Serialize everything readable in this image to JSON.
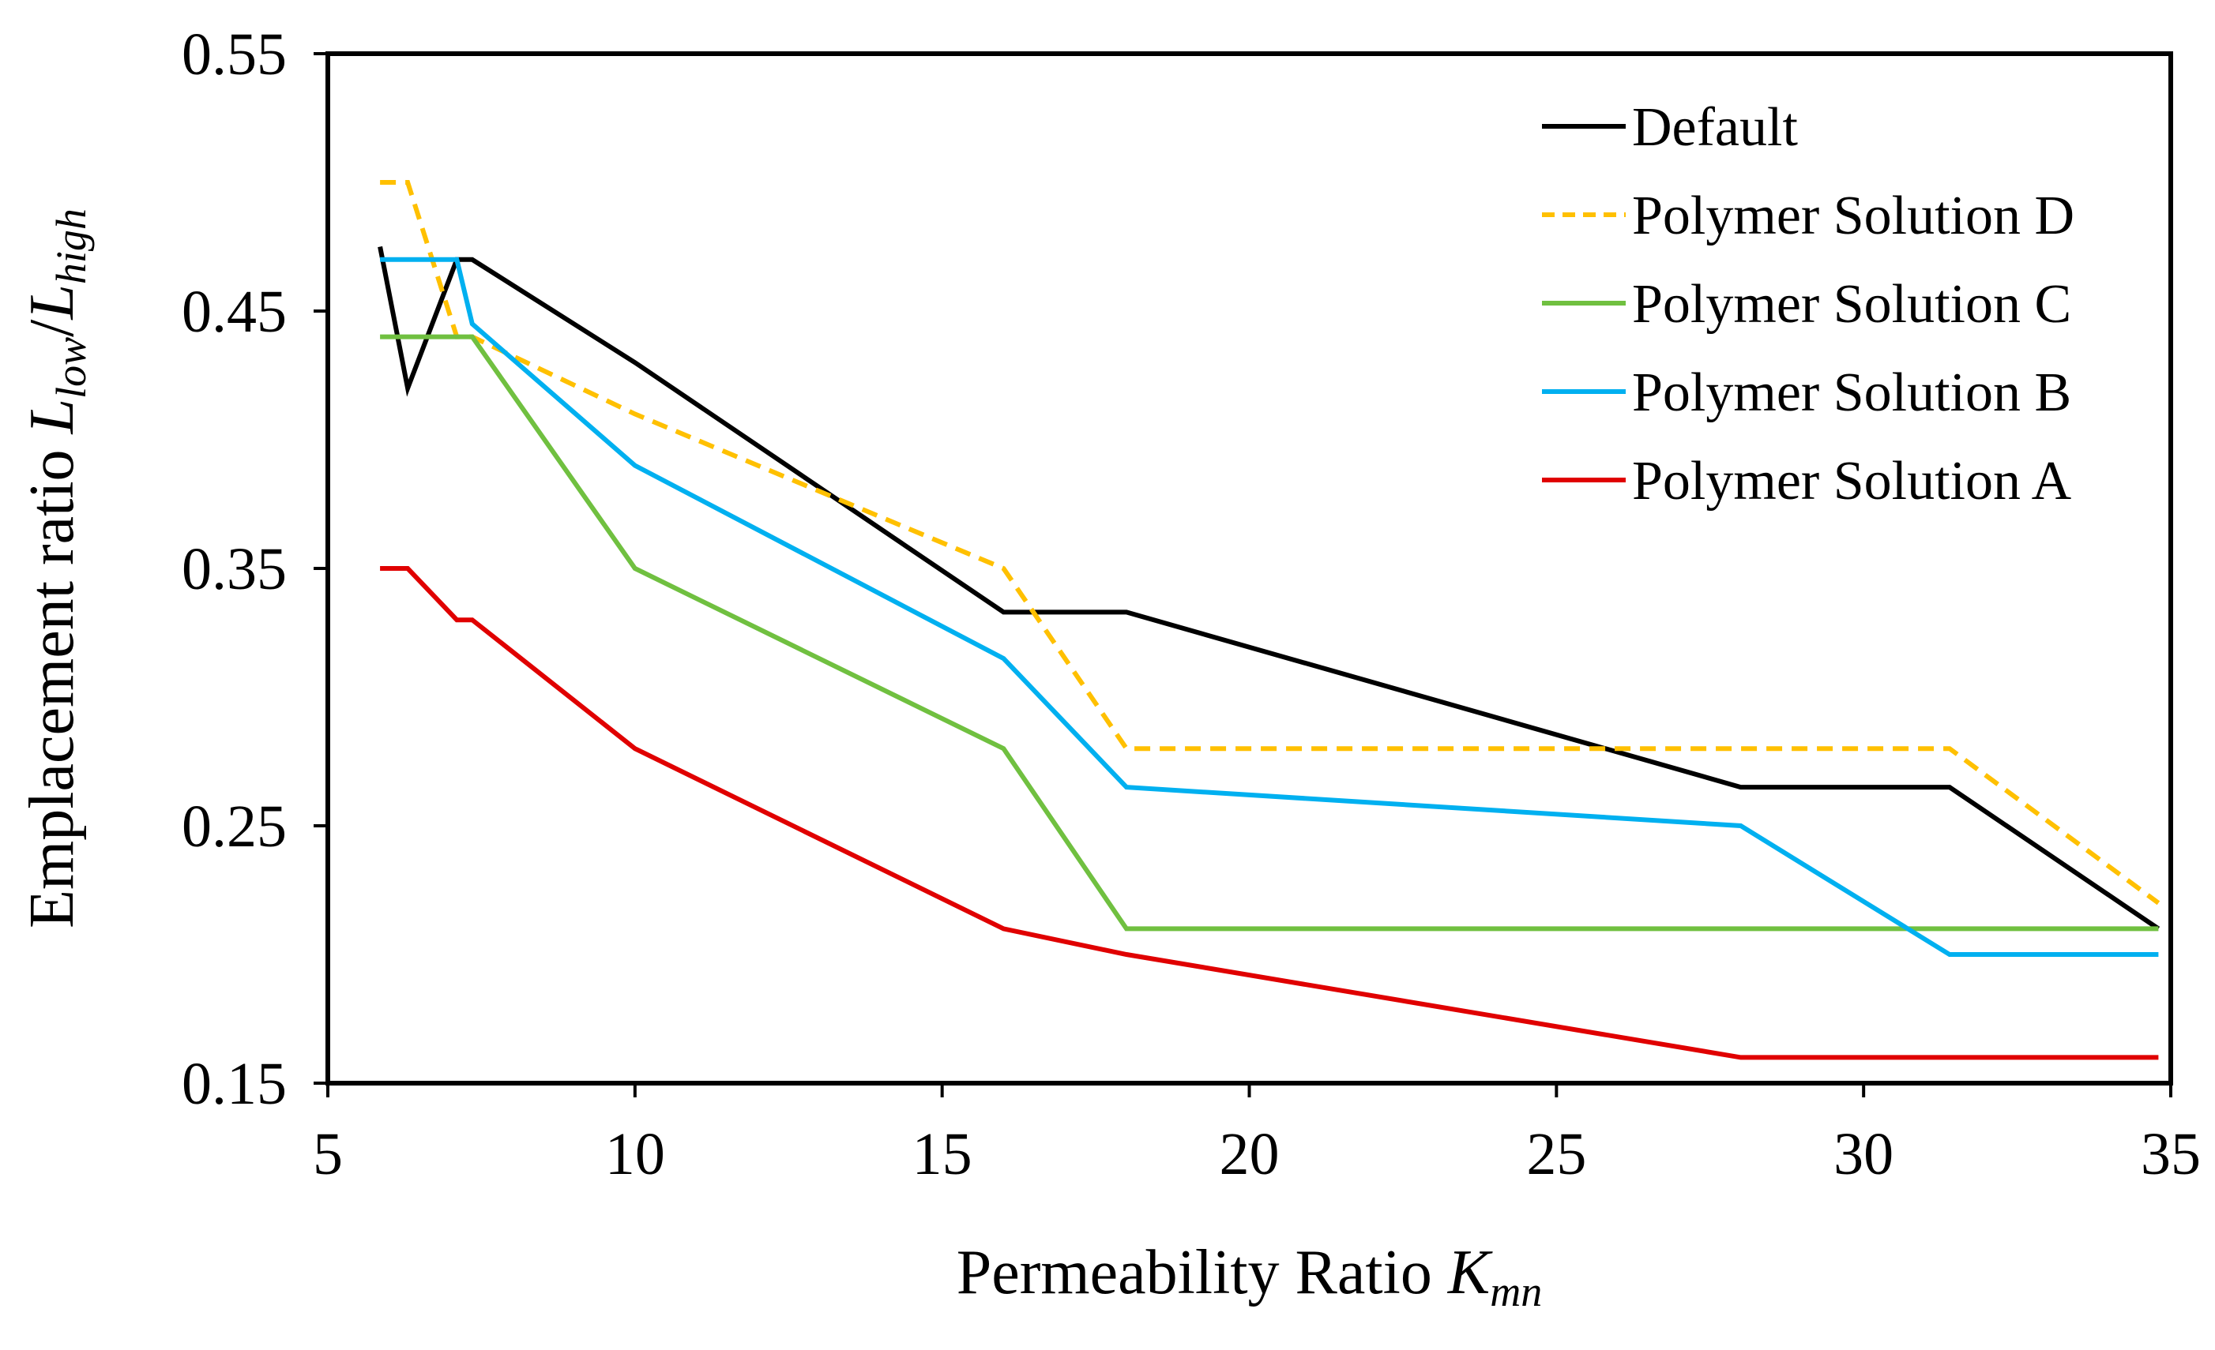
{
  "chart_data": {
    "type": "line",
    "title": "",
    "xlabel": {
      "main": "Permeability Ratio ",
      "italic": "K",
      "sub": "mn"
    },
    "ylabel": {
      "main": "Emplacement ratio ",
      "italic_num": "L",
      "sub_num": "low",
      "slash": "/",
      "italic_den": "L",
      "sub_den": "high"
    },
    "xlim": [
      5,
      35
    ],
    "ylim": [
      0.15,
      0.55
    ],
    "xticks": [
      5,
      10,
      15,
      20,
      25,
      30,
      35
    ],
    "yticks": [
      0.15,
      0.25,
      0.35,
      0.45,
      0.55
    ],
    "xtick_labels": [
      "5",
      "10",
      "15",
      "20",
      "25",
      "30",
      "35"
    ],
    "ytick_labels": [
      "0.15",
      "0.25",
      "0.35",
      "0.45",
      "0.55"
    ],
    "grid": false,
    "legend_position": "top-right",
    "series": [
      {
        "name": "Default",
        "color": "#000000",
        "dash": "solid",
        "x": [
          5.85,
          6.3,
          7.1,
          7.35,
          10,
          16,
          18,
          28,
          31.4,
          34.8
        ],
        "y": [
          0.475,
          0.42,
          0.47,
          0.47,
          0.43,
          0.333,
          0.333,
          0.265,
          0.265,
          0.21
        ]
      },
      {
        "name": "Polymer Solution D",
        "color": "#FFC000",
        "dash": "dashed",
        "x": [
          5.85,
          6.3,
          7.1,
          7.35,
          10,
          16,
          18,
          28,
          31.4,
          34.8
        ],
        "y": [
          0.5,
          0.5,
          0.44,
          0.44,
          0.41,
          0.35,
          0.28,
          0.28,
          0.28,
          0.22
        ]
      },
      {
        "name": "Polymer Solution C",
        "color": "#70C040",
        "dash": "solid",
        "x": [
          5.85,
          6.3,
          7.1,
          7.35,
          10,
          16,
          18,
          28,
          31.4,
          34.8
        ],
        "y": [
          0.44,
          0.44,
          0.44,
          0.44,
          0.35,
          0.28,
          0.21,
          0.21,
          0.21,
          0.21
        ]
      },
      {
        "name": "Polymer Solution B",
        "color": "#00B0F0",
        "dash": "solid",
        "x": [
          5.85,
          6.3,
          7.1,
          7.35,
          10,
          16,
          18,
          28,
          31.4,
          34.8
        ],
        "y": [
          0.47,
          0.47,
          0.47,
          0.445,
          0.39,
          0.315,
          0.265,
          0.25,
          0.2,
          0.2
        ]
      },
      {
        "name": "Polymer Solution A",
        "color": "#E00000",
        "dash": "solid",
        "x": [
          5.85,
          6.3,
          7.1,
          7.35,
          10,
          16,
          18,
          28,
          31.4,
          34.8
        ],
        "y": [
          0.35,
          0.35,
          0.33,
          0.33,
          0.28,
          0.21,
          0.2,
          0.16,
          0.16,
          0.16
        ]
      }
    ]
  }
}
